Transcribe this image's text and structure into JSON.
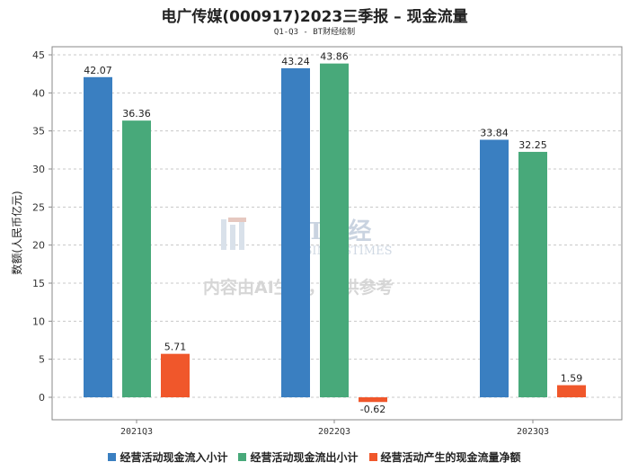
{
  "chart_data": {
    "type": "bar",
    "title": "电广传媒(000917)2023三季报 – 现金流量",
    "subtitle": "Q1-Q3 - BT财经绘制",
    "ylabel": "数额(人民币亿元)",
    "xlabel": "",
    "ylim": [
      -2.5,
      45
    ],
    "yticks": [
      0,
      5,
      10,
      15,
      20,
      25,
      30,
      35,
      40,
      45
    ],
    "grid": true,
    "legend_position": "bottom",
    "categories": [
      "2021Q3",
      "2022Q3",
      "2023Q3"
    ],
    "series": [
      {
        "name": "经营活动现金流入小计",
        "color": "#3a7fc1",
        "values": [
          42.07,
          43.24,
          33.84
        ],
        "labels": [
          "42.07",
          "43.24",
          "33.84"
        ]
      },
      {
        "name": "经营活动现金流出小计",
        "color": "#48a97a",
        "values": [
          36.36,
          43.86,
          32.25
        ],
        "labels": [
          "36.36",
          "43.86",
          "32.25"
        ]
      },
      {
        "name": "经营活动产生的现金流量净额",
        "color": "#f0572b",
        "values": [
          5.71,
          -0.62,
          1.59
        ],
        "labels": [
          "5.71",
          "-0.62",
          "1.59"
        ]
      }
    ]
  },
  "watermark": {
    "brand": "BT财经",
    "brand_en": "BUSINESSTIMES",
    "notice": "内容由AI生成，仅供参考"
  }
}
